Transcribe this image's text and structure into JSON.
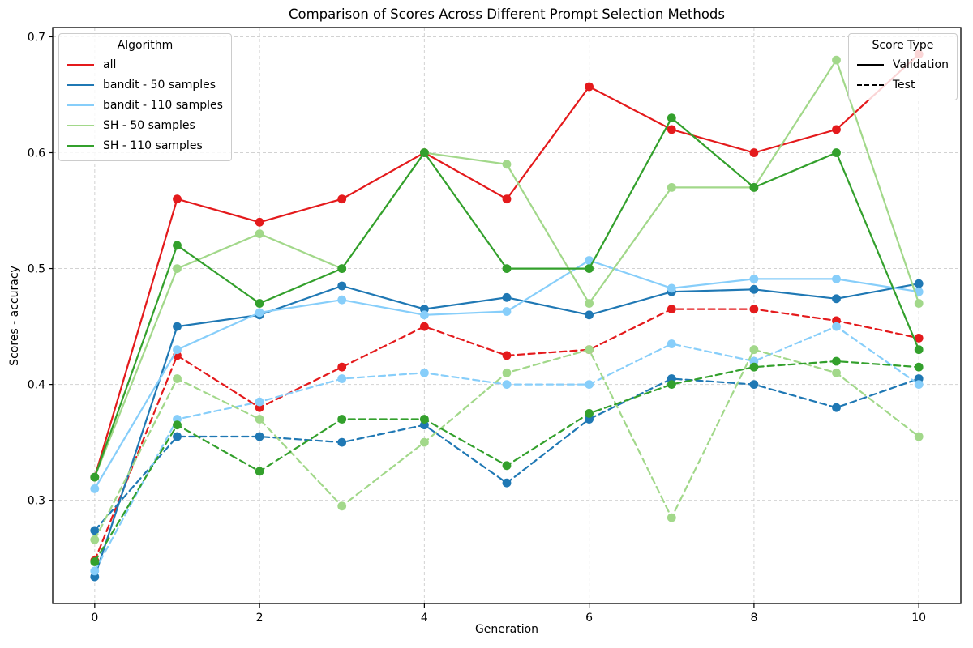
{
  "figure": {
    "title": "Comparison of Scores Across Different Prompt Selection Methods",
    "xlabel": "Generation",
    "ylabel": "Scores - accuracy"
  },
  "legend_algorithm": {
    "title": "Algorithm",
    "items": [
      {
        "label": "all",
        "color": "#e41a1c"
      },
      {
        "label": "bandit - 50 samples",
        "color": "#1f78b4"
      },
      {
        "label": "bandit - 110 samples",
        "color": "#87cefa"
      },
      {
        "label": "SH - 50 samples",
        "color": "#a2d88a"
      },
      {
        "label": "SH - 110 samples",
        "color": "#33a02c"
      }
    ]
  },
  "legend_scoretype": {
    "title": "Score Type",
    "items": [
      {
        "label": "Validation",
        "style": "solid",
        "color": "#000000"
      },
      {
        "label": "Test",
        "style": "dashed",
        "color": "#000000"
      }
    ]
  },
  "chart_data": {
    "type": "line",
    "title": "Comparison of Scores Across Different Prompt Selection Methods",
    "xlabel": "Generation",
    "ylabel": "Scores - accuracy",
    "x": [
      0,
      1,
      2,
      3,
      4,
      5,
      6,
      7,
      8,
      9,
      10
    ],
    "xticks": [
      0,
      2,
      4,
      6,
      8,
      10
    ],
    "yticks": [
      0.3,
      0.4,
      0.5,
      0.6,
      0.7
    ],
    "xlim": [
      -0.51,
      10.51
    ],
    "ylim": [
      0.211,
      0.708
    ],
    "grid": true,
    "legend_position": {
      "algorithm": "upper left",
      "score_type": "upper right"
    },
    "series": [
      {
        "algorithm": "all",
        "score_type": "Validation",
        "style": "solid",
        "color": "#e41a1c",
        "values": [
          0.32,
          0.56,
          0.54,
          0.56,
          0.6,
          0.56,
          0.657,
          0.62,
          0.6,
          0.62,
          0.685
        ]
      },
      {
        "algorithm": "all",
        "score_type": "Test",
        "style": "dashed",
        "color": "#e41a1c",
        "values": [
          0.248,
          0.425,
          0.38,
          0.415,
          0.45,
          0.425,
          0.43,
          0.465,
          0.465,
          0.455,
          0.44
        ]
      },
      {
        "algorithm": "bandit - 50 samples",
        "score_type": "Validation",
        "style": "solid",
        "color": "#1f78b4",
        "values": [
          0.234,
          0.45,
          0.46,
          0.485,
          0.465,
          0.475,
          0.46,
          0.48,
          0.482,
          0.474,
          0.487
        ]
      },
      {
        "algorithm": "bandit - 50 samples",
        "score_type": "Test",
        "style": "dashed",
        "color": "#1f78b4",
        "values": [
          0.274,
          0.355,
          0.355,
          0.35,
          0.365,
          0.315,
          0.37,
          0.405,
          0.4,
          0.38,
          0.405
        ]
      },
      {
        "algorithm": "bandit - 110 samples",
        "score_type": "Validation",
        "style": "solid",
        "color": "#87cefa",
        "values": [
          0.31,
          0.43,
          0.462,
          0.473,
          0.46,
          0.463,
          0.507,
          0.483,
          0.491,
          0.491,
          0.48
        ]
      },
      {
        "algorithm": "bandit - 110 samples",
        "score_type": "Test",
        "style": "dashed",
        "color": "#87cefa",
        "values": [
          0.239,
          0.37,
          0.385,
          0.405,
          0.41,
          0.4,
          0.4,
          0.435,
          0.42,
          0.45,
          0.4
        ]
      },
      {
        "algorithm": "SH - 50 samples",
        "score_type": "Validation",
        "style": "solid",
        "color": "#a2d88a",
        "values": [
          0.32,
          0.5,
          0.53,
          0.5,
          0.6,
          0.59,
          0.47,
          0.57,
          0.57,
          0.68,
          0.47
        ]
      },
      {
        "algorithm": "SH - 50 samples",
        "score_type": "Test",
        "style": "dashed",
        "color": "#a2d88a",
        "values": [
          0.266,
          0.405,
          0.37,
          0.295,
          0.35,
          0.41,
          0.43,
          0.285,
          0.43,
          0.41,
          0.355
        ]
      },
      {
        "algorithm": "SH - 110 samples",
        "score_type": "Validation",
        "style": "solid",
        "color": "#33a02c",
        "values": [
          0.32,
          0.52,
          0.47,
          0.5,
          0.6,
          0.5,
          0.5,
          0.63,
          0.57,
          0.6,
          0.43
        ]
      },
      {
        "algorithm": "SH - 110 samples",
        "score_type": "Test",
        "style": "dashed",
        "color": "#33a02c",
        "values": [
          0.247,
          0.365,
          0.325,
          0.37,
          0.37,
          0.33,
          0.375,
          0.4,
          0.415,
          0.42,
          0.415
        ]
      }
    ]
  }
}
